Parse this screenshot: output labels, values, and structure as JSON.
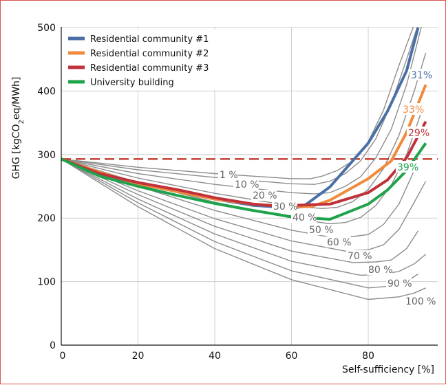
{
  "chart_data": {
    "type": "line",
    "xlabel": "Self-sufficiency [%]",
    "ylabel_prefix": "GHG [kgCO",
    "ylabel_sub": "2",
    "ylabel_suffix": "eq/MWh]",
    "xlim": [
      0,
      100
    ],
    "ylim": [
      0,
      500
    ],
    "xticks": [
      0,
      20,
      40,
      60,
      80
    ],
    "yticks": [
      0,
      100,
      200,
      300,
      400,
      500
    ],
    "grid": true,
    "legend_position": "top-left",
    "reference_line": {
      "y": 293,
      "color": "#c0392b",
      "style": "dashed"
    },
    "scenario_curves": [
      {
        "label": "1 %",
        "points": [
          [
            0,
            293
          ],
          [
            20,
            280
          ],
          [
            40,
            270
          ],
          [
            60,
            262
          ],
          [
            65,
            262
          ],
          [
            68,
            266
          ],
          [
            72,
            275
          ],
          [
            76,
            290
          ],
          [
            80,
            320
          ],
          [
            84,
            370
          ],
          [
            88,
            440
          ],
          [
            92,
            505
          ]
        ]
      },
      {
        "label": "10 %",
        "points": [
          [
            0,
            293
          ],
          [
            20,
            276
          ],
          [
            40,
            264
          ],
          [
            60,
            254
          ],
          [
            66,
            253
          ],
          [
            70,
            258
          ],
          [
            74,
            270
          ],
          [
            78,
            290
          ],
          [
            82,
            325
          ],
          [
            86,
            380
          ],
          [
            90,
            450
          ],
          [
            93,
            505
          ]
        ]
      },
      {
        "label": "20 %",
        "points": [
          [
            0,
            293
          ],
          [
            20,
            270
          ],
          [
            40,
            253
          ],
          [
            60,
            240
          ],
          [
            66,
            238
          ],
          [
            70,
            240
          ],
          [
            74,
            250
          ],
          [
            78,
            265
          ],
          [
            82,
            295
          ],
          [
            86,
            340
          ],
          [
            90,
            410
          ],
          [
            94,
            505
          ]
        ]
      },
      {
        "label": "30 %",
        "points": [
          [
            0,
            293
          ],
          [
            20,
            263
          ],
          [
            40,
            239
          ],
          [
            60,
            219
          ],
          [
            68,
            215
          ],
          [
            72,
            217
          ],
          [
            76,
            226
          ],
          [
            80,
            245
          ],
          [
            84,
            278
          ],
          [
            88,
            330
          ],
          [
            92,
            400
          ],
          [
            95,
            460
          ]
        ]
      },
      {
        "label": "40 %",
        "points": [
          [
            0,
            293
          ],
          [
            20,
            256
          ],
          [
            40,
            225
          ],
          [
            60,
            200
          ],
          [
            70,
            191
          ],
          [
            74,
            193
          ],
          [
            78,
            201
          ],
          [
            82,
            220
          ],
          [
            86,
            252
          ],
          [
            90,
            300
          ],
          [
            94,
            370
          ]
        ]
      },
      {
        "label": "50 %",
        "points": [
          [
            0,
            293
          ],
          [
            20,
            250
          ],
          [
            40,
            212
          ],
          [
            60,
            181
          ],
          [
            72,
            168
          ],
          [
            76,
            171
          ],
          [
            80,
            174
          ],
          [
            84,
            190
          ],
          [
            88,
            222
          ],
          [
            92,
            275
          ]
        ]
      },
      {
        "label": "60 %",
        "points": [
          [
            0,
            293
          ],
          [
            20,
            243
          ],
          [
            40,
            199
          ],
          [
            60,
            164
          ],
          [
            74,
            148
          ],
          [
            80,
            150
          ],
          [
            84,
            158
          ],
          [
            88,
            182
          ],
          [
            92,
            225
          ],
          [
            95,
            258
          ]
        ]
      },
      {
        "label": "70 %",
        "points": [
          [
            0,
            293
          ],
          [
            20,
            237
          ],
          [
            40,
            187
          ],
          [
            60,
            148
          ],
          [
            76,
            130
          ],
          [
            82,
            131
          ],
          [
            86,
            134
          ],
          [
            90,
            152
          ],
          [
            93,
            180
          ]
        ]
      },
      {
        "label": "80 %",
        "points": [
          [
            0,
            293
          ],
          [
            20,
            230
          ],
          [
            40,
            175
          ],
          [
            60,
            132
          ],
          [
            78,
            110
          ],
          [
            84,
            112
          ],
          [
            88,
            116
          ],
          [
            92,
            128
          ],
          [
            95,
            143
          ]
        ]
      },
      {
        "label": "90 %",
        "points": [
          [
            0,
            293
          ],
          [
            20,
            224
          ],
          [
            40,
            163
          ],
          [
            60,
            117
          ],
          [
            80,
            90
          ],
          [
            86,
            93
          ],
          [
            90,
            100
          ],
          [
            93,
            112
          ]
        ]
      },
      {
        "label": "100 %",
        "points": [
          [
            0,
            293
          ],
          [
            20,
            218
          ],
          [
            40,
            152
          ],
          [
            60,
            103
          ],
          [
            80,
            72
          ],
          [
            88,
            76
          ],
          [
            92,
            82
          ],
          [
            95,
            90
          ]
        ]
      }
    ],
    "series": [
      {
        "name": "Residential community #1",
        "color": "#4a6fa5",
        "end_label": "31%",
        "points": [
          [
            0,
            293
          ],
          [
            10,
            271
          ],
          [
            20,
            254
          ],
          [
            30,
            242
          ],
          [
            40,
            230
          ],
          [
            50,
            220
          ],
          [
            60,
            216
          ],
          [
            63,
            218
          ],
          [
            70,
            249
          ],
          [
            80,
            318
          ],
          [
            85,
            368
          ],
          [
            90,
            432
          ],
          [
            93,
            500
          ]
        ]
      },
      {
        "name": "Residential community #2",
        "color": "#f08a3c",
        "end_label": "33%",
        "points": [
          [
            0,
            293
          ],
          [
            10,
            272
          ],
          [
            20,
            254
          ],
          [
            30,
            242
          ],
          [
            40,
            230
          ],
          [
            50,
            222
          ],
          [
            60,
            218
          ],
          [
            65,
            218
          ],
          [
            70,
            228
          ],
          [
            80,
            262
          ],
          [
            86,
            290
          ],
          [
            90,
            335
          ],
          [
            95,
            410
          ]
        ]
      },
      {
        "name": "Residential community #3",
        "color": "#c0313a",
        "end_label": "29%",
        "points": [
          [
            0,
            293
          ],
          [
            10,
            270
          ],
          [
            20,
            256
          ],
          [
            30,
            245
          ],
          [
            40,
            232
          ],
          [
            50,
            222
          ],
          [
            56,
            219
          ],
          [
            60,
            220
          ],
          [
            70,
            222
          ],
          [
            80,
            240
          ],
          [
            85,
            260
          ],
          [
            90,
            295
          ],
          [
            95,
            352
          ]
        ]
      },
      {
        "name": "University building",
        "color": "#1ea34a",
        "end_label": "39%",
        "points": [
          [
            0,
            293
          ],
          [
            10,
            266
          ],
          [
            20,
            250
          ],
          [
            30,
            236
          ],
          [
            40,
            223
          ],
          [
            50,
            212
          ],
          [
            60,
            202
          ],
          [
            70,
            198
          ],
          [
            80,
            222
          ],
          [
            85,
            244
          ],
          [
            90,
            275
          ],
          [
            95,
            318
          ]
        ]
      }
    ]
  }
}
